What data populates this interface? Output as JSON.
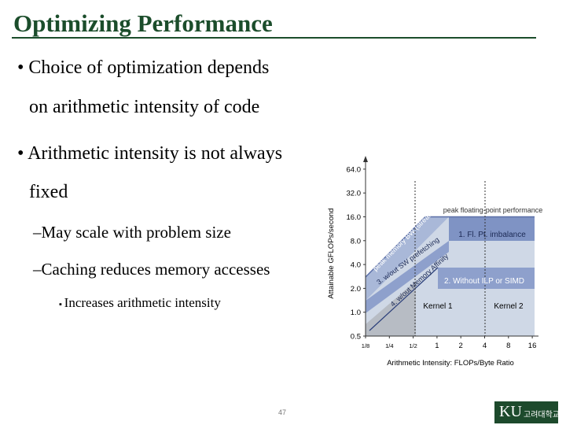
{
  "header": {
    "title": "Optimizing Performance"
  },
  "bullets": [
    {
      "line1": "Choice of optimization depends",
      "line2": "on arithmetic intensity of code"
    },
    {
      "line1": "Arithmetic intensity is not always",
      "line2": "fixed",
      "sub": [
        "May scale with problem size",
        "Caching reduces memory accesses"
      ],
      "subsub": [
        "Increases arithmetic intensity"
      ]
    }
  ],
  "figure": {
    "ylabel": "Attainable GFLOPs/second",
    "xlabel": "Arithmetic Intensity: FLOPs/Byte Ratio",
    "yticks": [
      "0.5",
      "1.0",
      "2.0",
      "4.0",
      "8.0",
      "16.0",
      "32.0",
      "64.0"
    ],
    "xticks": [
      "1/8",
      "1/4",
      "1/2",
      "1",
      "2",
      "4",
      "8",
      "16"
    ],
    "labels": {
      "peak_fp": "peak floating-point performance",
      "ceiling1": "1. Fl. Pt. imbalance",
      "ceiling2": "2. Without ILP or SIMD",
      "peak_bw": "peak memory BW (stream)",
      "ceiling3": "3. w/out SW prefetching",
      "ceiling4": "4. w/out Memory Affinity",
      "kernel1": "Kernel 1",
      "kernel2": "Kernel 2"
    }
  },
  "footer": {
    "page": "47",
    "logo_mark": "KU",
    "logo_text": "고려대학교"
  }
}
